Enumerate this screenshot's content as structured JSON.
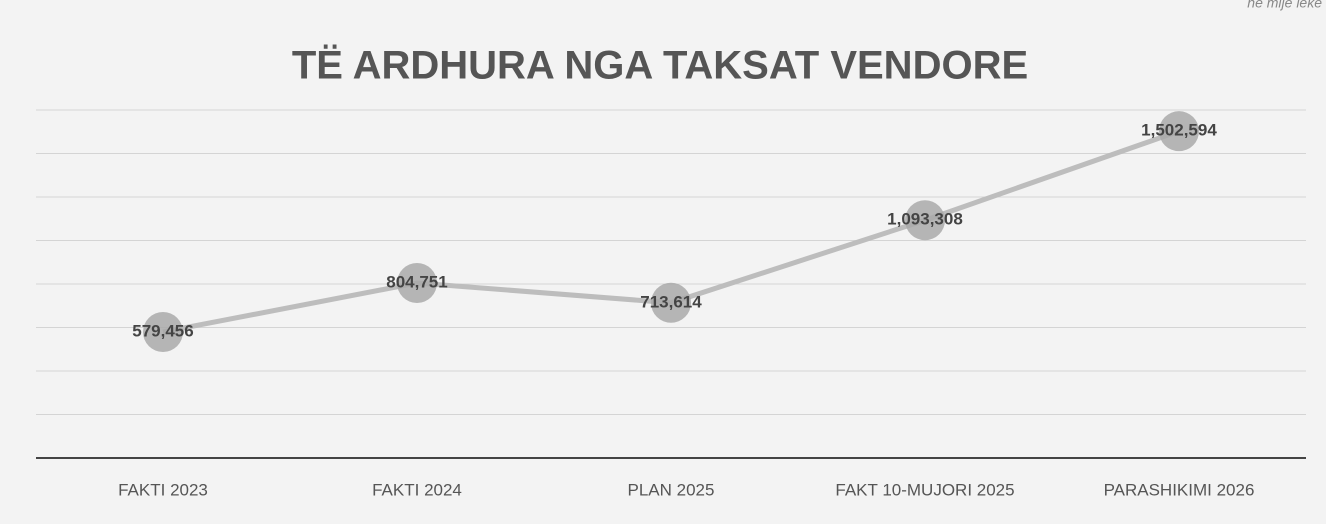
{
  "chart_data": {
    "type": "line",
    "title": "TË  ARDHURA NGA TAKSAT  VENDORE",
    "subtitle": "në mijë lekë",
    "categories": [
      "FAKTI 2023",
      "FAKTI 2024",
      "PLAN 2025",
      "FAKT 10-MUJORI 2025",
      "PARASHIKIMI 2026"
    ],
    "series": [
      {
        "name": "TË ARDHURA",
        "color": "#bdbdbd",
        "marker_color": "#a9a9a9",
        "values": [
          579456,
          804751,
          713614,
          1093308,
          1502594
        ],
        "value_labels": [
          "579,456",
          "804,751",
          "713,614",
          "1,093,308",
          "1,502,594"
        ]
      }
    ],
    "ylim": [
      0,
      1600000
    ],
    "yticks": [
      0,
      200000,
      400000,
      600000,
      800000,
      1000000,
      1200000,
      1400000,
      1600000
    ],
    "grid": true
  }
}
